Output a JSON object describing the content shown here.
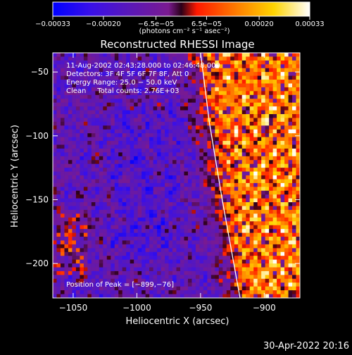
{
  "chart_data": {
    "type": "heatmap",
    "title": "Reconstructed RHESSI Image",
    "xlabel": "Heliocentric X (arcsec)",
    "ylabel": "Heliocentric Y (arcsec)",
    "xlim": [
      -1066,
      -872
    ],
    "ylim": [
      -227,
      -35
    ],
    "x_ticks": [
      -1050,
      -1000,
      -950,
      -900
    ],
    "x_tick_labels": [
      "−1050",
      "−1000",
      "−950",
      "−900"
    ],
    "y_ticks": [
      -200,
      -150,
      -100,
      -50
    ],
    "y_tick_labels": [
      "−200",
      "−150",
      "−100",
      "−50"
    ],
    "colorbar": {
      "range": [
        -0.00033,
        0.00033
      ],
      "ticks": [
        -0.00033,
        -0.0002,
        -6.5e-05,
        6.5e-05,
        0.0002,
        0.00033
      ],
      "tick_labels": [
        "−0.00033",
        "−0.00020",
        "−6.5e−05",
        "6.5e−05",
        "0.00020",
        "0.00033"
      ],
      "unit_label": "(photons cm⁻² s⁻¹ asec⁻²)",
      "colors": [
        "#0000ff",
        "#3a10e8",
        "#5a18b8",
        "#7a1a90",
        "#3a0028",
        "#ff1800",
        "#ff8000",
        "#ffd400",
        "#ffffff"
      ]
    },
    "annotations": [
      "11‑Aug‑2002 02:43:28.000 to 02:46:48.000",
      "Detectors: 3F 4F 5F 6F 7F 8F, Att 0",
      "Energy Range: 25.0 − 50.0 keV",
      "Clean     Total counts: 2.76E+03"
    ],
    "peak_label": "Position of Peak = [−899,−76]",
    "limb_curve": [
      [
        -950,
        -35
      ],
      [
        -943,
        -90
      ],
      [
        -933,
        -150
      ],
      [
        -919,
        -227
      ]
    ],
    "timestamp": "30-Apr-2022 20:16",
    "grid": false
  }
}
